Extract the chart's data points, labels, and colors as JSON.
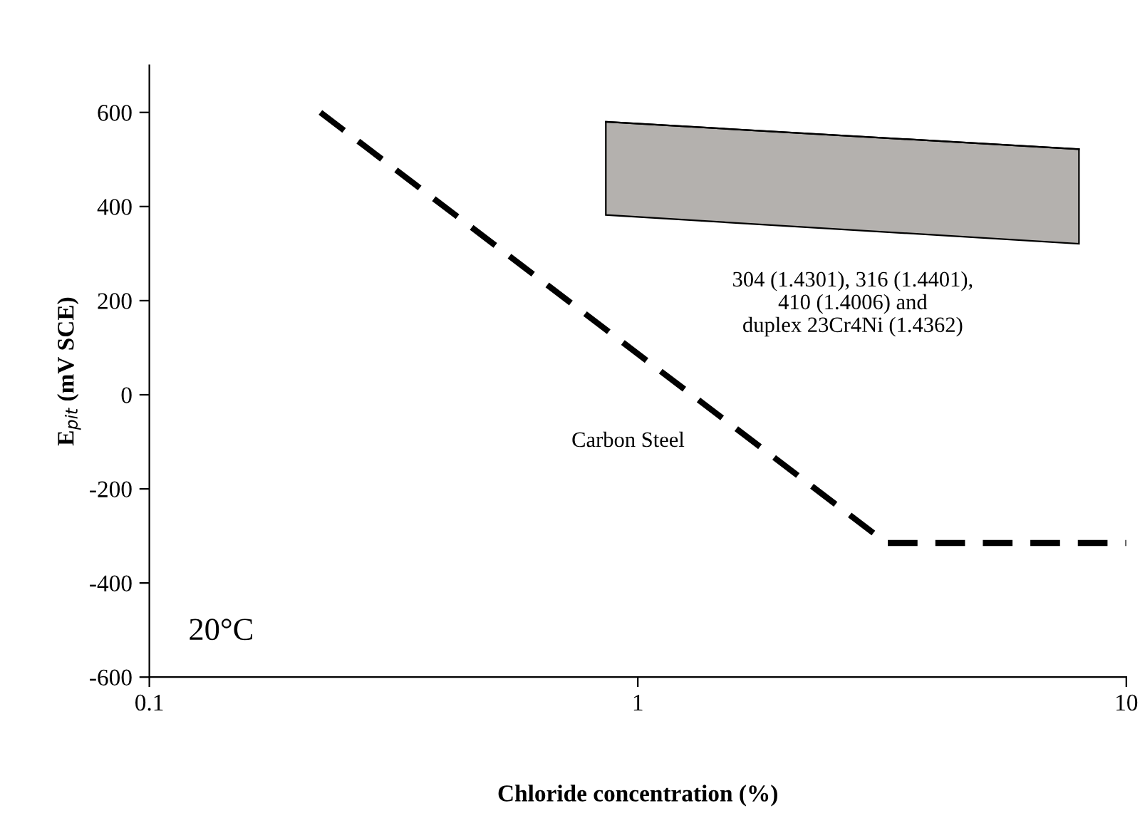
{
  "chart_data": {
    "type": "line",
    "xlabel": "Chloride concentration (%)",
    "ylabel": "E$_{pit}$ (mV SCE)",
    "log": "x",
    "xlim": [
      0.1,
      10
    ],
    "xticks": [
      0.1,
      1,
      10
    ],
    "ylim": [
      -600,
      700
    ],
    "yticks": [
      -600,
      -400,
      -200,
      0,
      200,
      400,
      600
    ],
    "grid": false,
    "legend": false,
    "line_style": "dashed",
    "marker": "none",
    "series": [
      {
        "color": "#000000",
        "x": [
          0.224,
          3.23,
          10
        ],
        "values": [
          600,
          -315,
          -315
        ]
      },
      {
        "type": "line",
        "color": "#000000",
        "colors": [
          "#b4b1ae",
          "#b4b1ae"
        ],
        "line_style": "solid",
        "x": [
          0.86,
          8.0
        ],
        "values": [
          580,
          522
        ],
        "lower": [
          382,
          321
        ],
        "upper": [
          580,
          522
        ]
      }
    ],
    "annotations": [
      "304 (1.4301), 316 (1.4401),\n410 (1.4006) and\nduplex 23Cr4Ni (1.4362)",
      "Carbon Steel",
      "20°C"
    ]
  }
}
